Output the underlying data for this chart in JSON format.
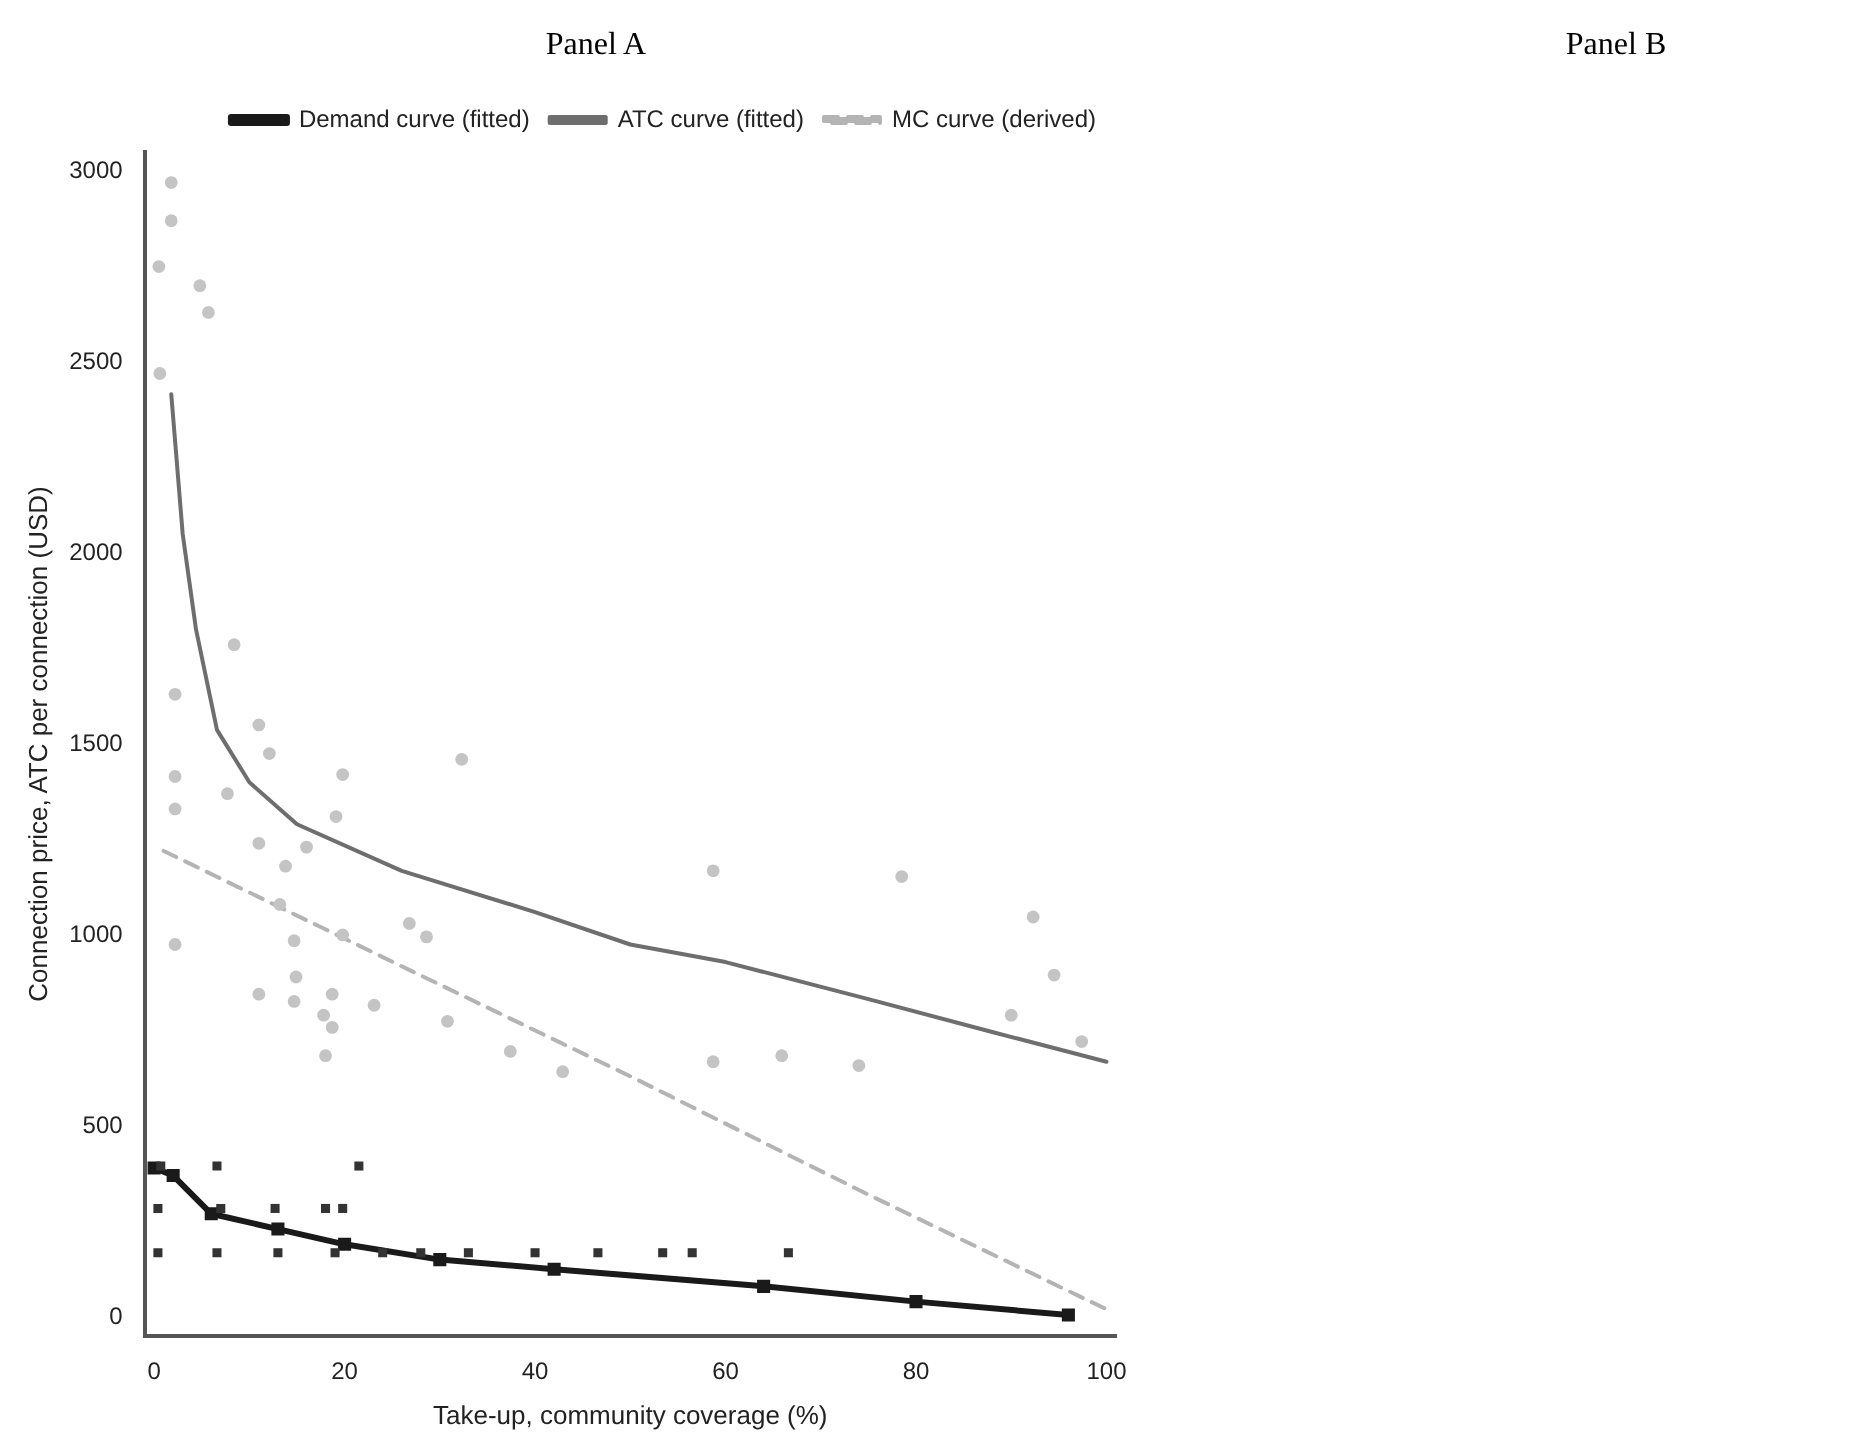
{
  "chart_data": [
    {
      "type": "scatter",
      "title": "Panel A",
      "xlabel": "Take-up, community coverage (%)",
      "ylabel": "Connection price, ATC per connection (USD)",
      "xlim": [
        -1,
        101
      ],
      "ylim": [
        -50,
        3050
      ],
      "xticks": [
        0,
        20,
        40,
        60,
        80,
        100
      ],
      "yticks": [
        0,
        500,
        1000,
        1500,
        2000,
        2500,
        3000
      ],
      "grid": false,
      "legend": "top right",
      "series": [
        {
          "type": "scatter",
          "marker": "circle",
          "color": "#c4c4c4",
          "x": [
            1.8,
            1.8,
            0.5,
            4.8,
            5.7,
            0.6,
            8.4,
            2.2,
            11,
            12.1,
            19.8,
            32.3,
            2.2,
            7.7,
            2.2,
            19.1,
            11,
            13.8,
            16,
            13.2,
            26.8,
            28.6,
            2.2,
            14.7,
            19.8,
            14.9,
            11,
            14.7,
            18.7,
            23.1,
            17.8,
            18.7,
            30.8,
            18,
            37.4,
            42.9,
            58.7,
            78.5,
            92.3,
            94.5,
            90,
            97.4,
            58.7,
            65.9,
            74
          ],
          "values": [
            2970,
            2870,
            2750,
            2700,
            2630,
            2470,
            1760,
            1630,
            1550,
            1475,
            1420,
            1460,
            1415,
            1370,
            1330,
            1310,
            1240,
            1180,
            1230,
            1080,
            1030,
            995,
            975,
            985,
            1000,
            890,
            845,
            826,
            845,
            816,
            790,
            758,
            774,
            684,
            695,
            642,
            1168,
            1153,
            1047,
            895,
            790,
            721,
            668,
            684,
            658
          ]
        },
        {
          "type": "scatter",
          "marker": "square",
          "color": "#333333",
          "x": [
            0.7,
            6.6,
            21.5,
            0.4,
            7,
            12.7,
            18,
            19.8,
            0.4,
            6.6,
            13,
            19,
            24,
            28,
            33,
            40,
            46.6,
            53.4,
            56.5,
            66.6
          ],
          "values": [
            395,
            395,
            395,
            284,
            284,
            284,
            284,
            284,
            168,
            168,
            168,
            168,
            168,
            168,
            168,
            168,
            168,
            168,
            168,
            168
          ]
        },
        {
          "type": "line",
          "name": "Demand curve (fitted)",
          "marker": "square",
          "line_style": "solid",
          "color": "#1a1a1a",
          "x": [
            0,
            2,
            6,
            13,
            20,
            30,
            42,
            64,
            80,
            96
          ],
          "values": [
            390,
            370,
            270,
            230,
            190,
            150,
            125,
            80,
            40,
            5
          ]
        },
        {
          "type": "line",
          "name": "ATC curve (fitted)",
          "marker": "none",
          "line_style": "solid",
          "color": "#6e6e6e",
          "x": [
            1.8,
            3,
            4.4,
            6.6,
            10,
            15,
            26,
            40,
            50,
            60,
            75,
            88,
            100
          ],
          "values": [
            2416,
            2050,
            1800,
            1537,
            1400,
            1290,
            1168,
            1060,
            975,
            929,
            832,
            746,
            668
          ]
        },
        {
          "type": "line",
          "name": "MC curve (derived)",
          "marker": "none",
          "line_style": "dashed",
          "color": "#b4b4b4",
          "x": [
            1,
            25,
            50,
            75,
            100
          ],
          "values": [
            1220,
            930,
            630,
            320,
            20
          ]
        }
      ]
    },
    {
      "type": "other",
      "title": "Panel B"
    }
  ]
}
